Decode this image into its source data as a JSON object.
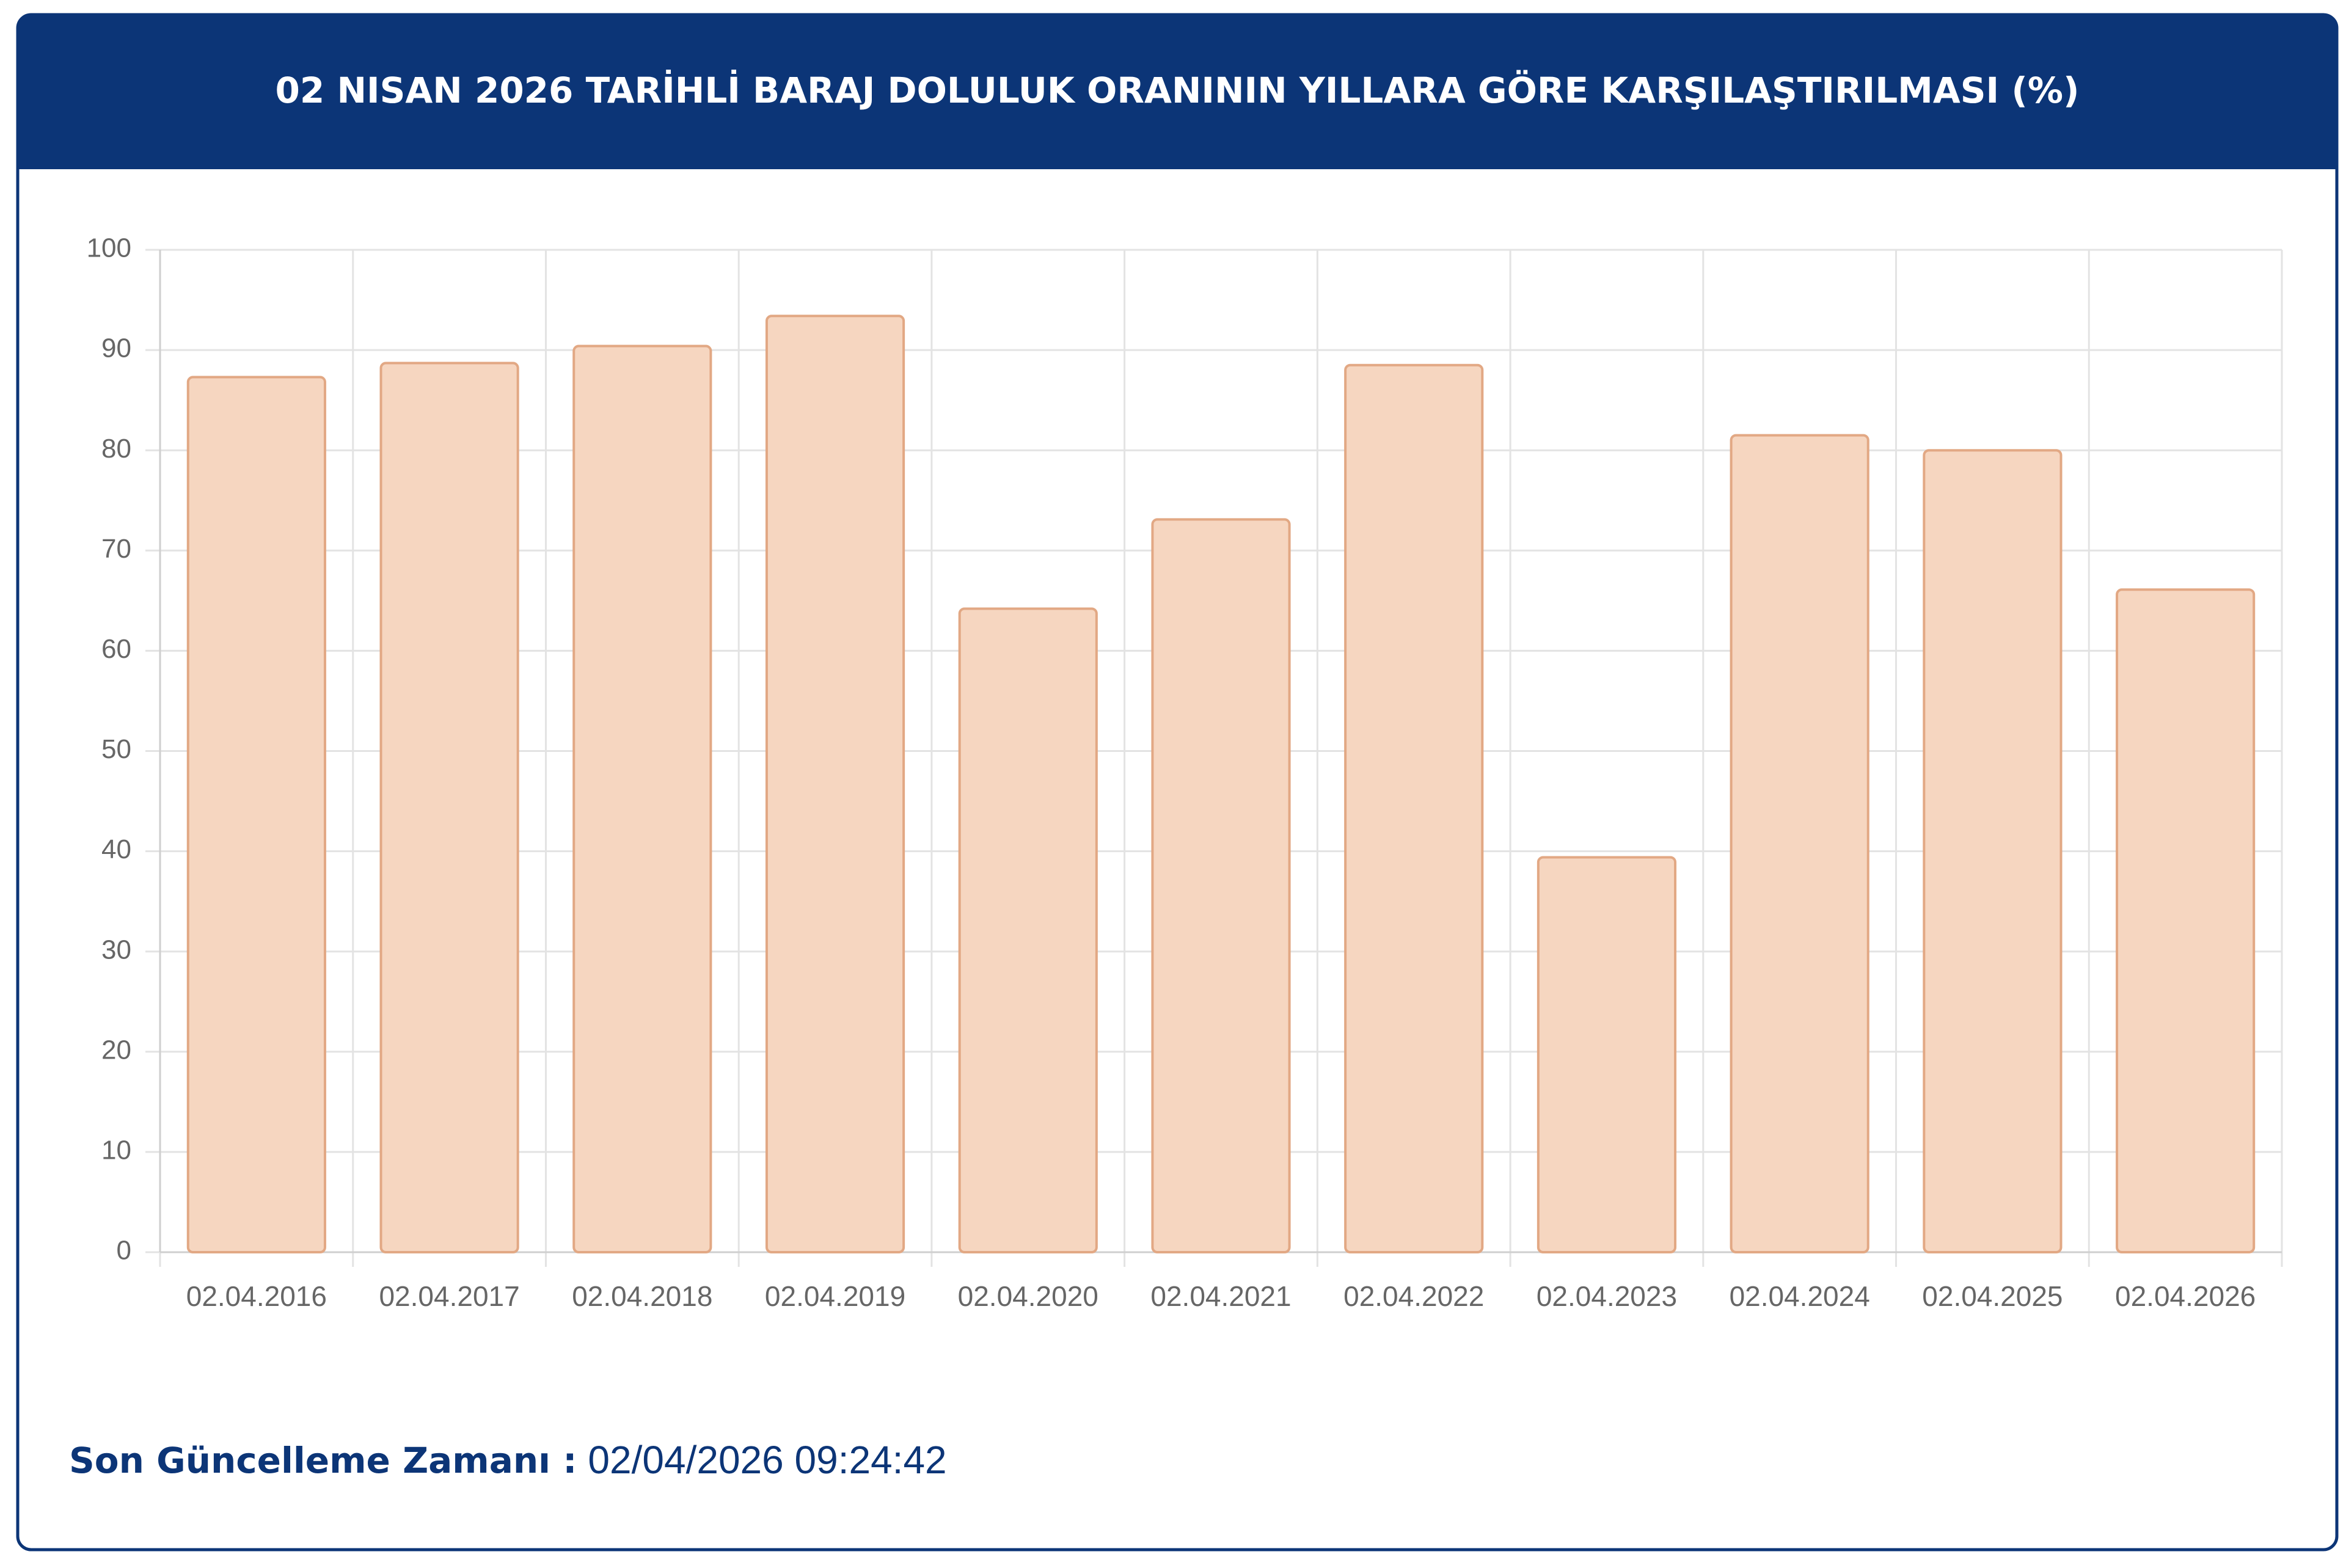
{
  "chart_data": {
    "type": "bar",
    "title": "02 NISAN 2026 TARİHLİ BARAJ DOLULUK ORANININ YILLARA GÖRE KARŞILAŞTIRILMASI (%)",
    "categories": [
      "02.04.2016",
      "02.04.2017",
      "02.04.2018",
      "02.04.2019",
      "02.04.2020",
      "02.04.2021",
      "02.04.2022",
      "02.04.2023",
      "02.04.2024",
      "02.04.2025",
      "02.04.2026"
    ],
    "values": [
      87.3,
      88.7,
      90.4,
      93.4,
      64.2,
      73.1,
      88.5,
      39.4,
      81.5,
      80.0,
      66.1
    ],
    "color": "#f6d6c0",
    "ylim": [
      0,
      100
    ],
    "yticks": [
      0,
      10,
      20,
      30,
      40,
      50,
      60,
      70,
      80,
      90,
      100
    ],
    "grid": true
  },
  "footer": {
    "label": "Son Güncelleme Zamanı :",
    "value": "02/04/2026 09:24:42"
  }
}
